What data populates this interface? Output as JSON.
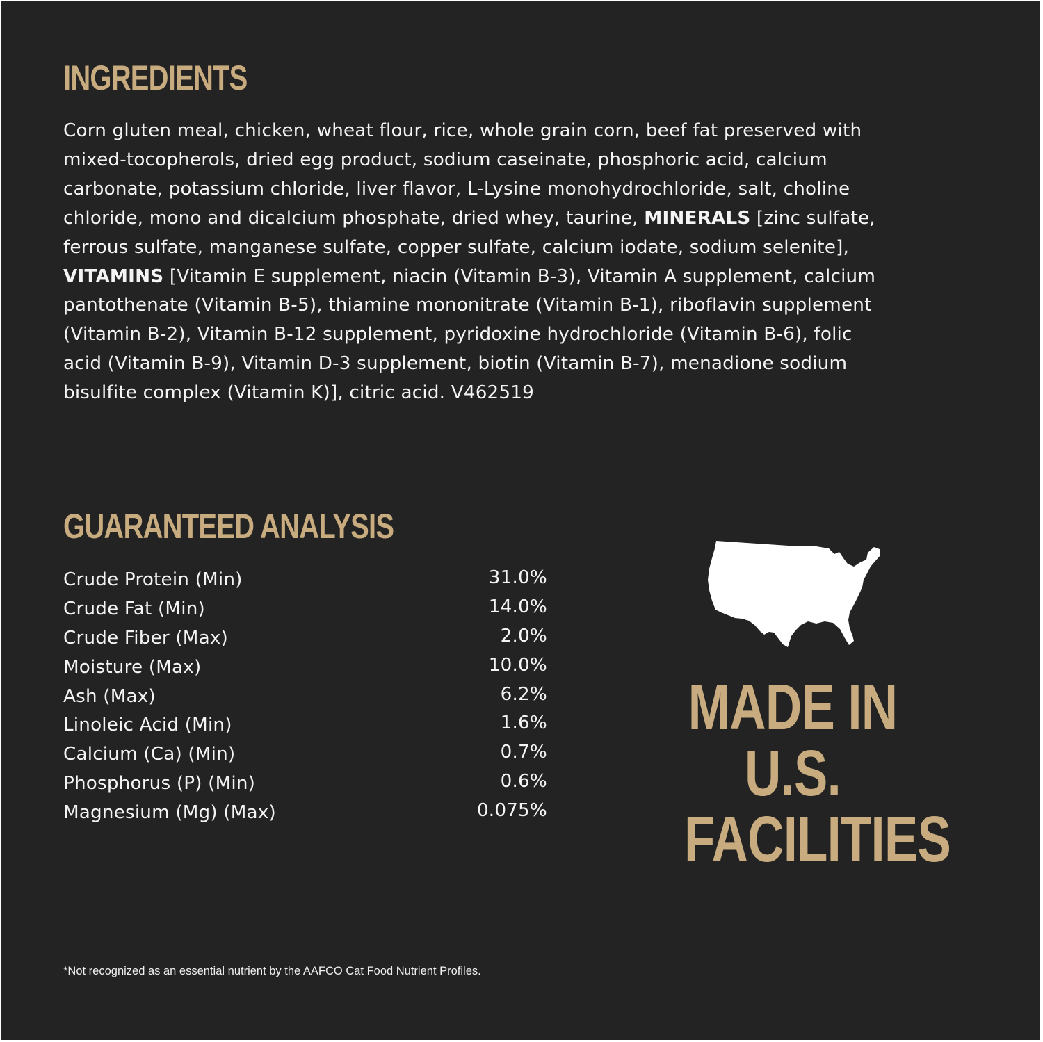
{
  "ingredients": {
    "heading": "INGREDIENTS",
    "lines": [
      {
        "text": "Corn gluten meal, chicken, wheat flour, rice, whole grain corn, beef fat preserved with"
      },
      {
        "text": "mixed-tocopherols, dried egg product, sodium caseinate, phosphoric acid, calcium"
      },
      {
        "text": "carbonate, potassium chloride, liver flavor, L-Lysine monohydrochloride, salt, choline"
      },
      {
        "pre": "chloride, mono and dicalcium phosphate, dried whey, taurine, ",
        "bold": "MINERALS",
        "post": " [zinc sulfate,"
      },
      {
        "text": "ferrous sulfate, manganese sulfate, copper sulfate, calcium iodate, sodium selenite],"
      },
      {
        "bold": "VITAMINS",
        "post": " [Vitamin E supplement, niacin (Vitamin B-3), Vitamin A supplement, calcium"
      },
      {
        "text": "pantothenate (Vitamin B-5), thiamine mononitrate (Vitamin B-1), riboflavin supplement"
      },
      {
        "text": "(Vitamin B-2), Vitamin B-12 supplement, pyridoxine hydrochloride (Vitamin B-6), folic"
      },
      {
        "text": "acid (Vitamin B-9), Vitamin D-3 supplement, biotin (Vitamin B-7), menadione sodium"
      },
      {
        "text": "bisulfite complex (Vitamin K)], citric acid. V462519"
      }
    ]
  },
  "analysis": {
    "heading": "GUARANTEED ANALYSIS",
    "rows": [
      {
        "label": "Crude Protein (Min)",
        "value": "31.0%"
      },
      {
        "label": "Crude Fat (Min)",
        "value": "14.0%"
      },
      {
        "label": "Crude Fiber (Max)",
        "value": "2.0%"
      },
      {
        "label": "Moisture (Max)",
        "value": "10.0%"
      },
      {
        "label": "Ash (Max)",
        "value": "6.2%"
      },
      {
        "label": "Linoleic Acid (Min)",
        "value": "1.6%"
      },
      {
        "label": "Calcium (Ca) (Min)",
        "value": "0.7%"
      },
      {
        "label": "Phosphorus (P) (Min)",
        "value": "0.6%"
      },
      {
        "label": "Magnesium (Mg) (Max)",
        "value": "0.075%"
      }
    ]
  },
  "badge": {
    "icon": "usa-map-icon",
    "lines": [
      "MADE IN",
      "U.S.",
      "FACILITIES"
    ]
  },
  "footnote": "*Not recognized as an essential nutrient by the AAFCO Cat Food Nutrient Profiles.",
  "colors": {
    "background": "#232323",
    "accent": "#c8ab7e",
    "text": "#f4f4f4"
  }
}
